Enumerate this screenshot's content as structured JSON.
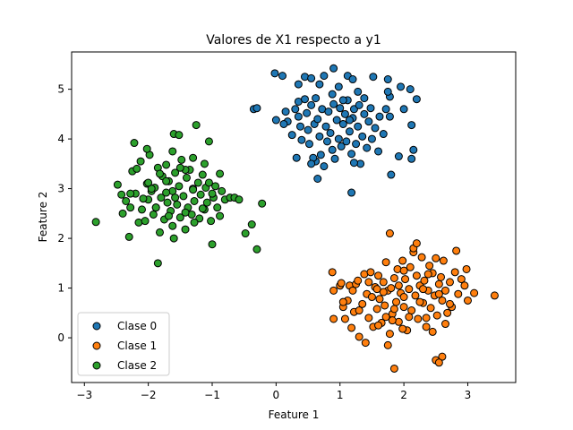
{
  "chart_data": {
    "type": "scatter",
    "title": "Valores de X1 respecto a y1",
    "xlabel": "Feature 1",
    "ylabel": "Feature 2",
    "xlim": [
      -3.2,
      3.75
    ],
    "ylim": [
      -0.9,
      5.75
    ],
    "xticks": [
      -3,
      -2,
      -1,
      0,
      1,
      2,
      3
    ],
    "yticks": [
      0,
      1,
      2,
      3,
      4,
      5
    ],
    "grid": false,
    "legend_position": "bottom-left",
    "marker": "circle",
    "marker_edge_color": "#000000",
    "series": [
      {
        "name": "Clase 0",
        "color": "#1f77b4",
        "points": [
          [
            -0.35,
            4.6
          ],
          [
            -0.3,
            4.62
          ],
          [
            -0.02,
            5.32
          ],
          [
            0.1,
            5.27
          ],
          [
            0.35,
            5.1
          ],
          [
            0.45,
            5.25
          ],
          [
            0.55,
            5.22
          ],
          [
            0.68,
            5.1
          ],
          [
            0.75,
            5.27
          ],
          [
            0.9,
            5.42
          ],
          [
            0.98,
            5.05
          ],
          [
            1.12,
            5.27
          ],
          [
            1.2,
            5.2
          ],
          [
            1.28,
            4.95
          ],
          [
            1.52,
            5.25
          ],
          [
            1.75,
            5.2
          ],
          [
            1.78,
            4.85
          ],
          [
            1.78,
            4.45
          ],
          [
            1.95,
            5.05
          ],
          [
            2.1,
            5
          ],
          [
            2.2,
            4.8
          ],
          [
            1.75,
            4.95
          ],
          [
            0.0,
            4.38
          ],
          [
            0.15,
            4.55
          ],
          [
            0.18,
            4.35
          ],
          [
            0.25,
            4.08
          ],
          [
            0.3,
            4.6
          ],
          [
            0.35,
            4.75
          ],
          [
            0.38,
            4.25
          ],
          [
            0.4,
            3.98
          ],
          [
            0.45,
            4.8
          ],
          [
            0.48,
            4.52
          ],
          [
            0.5,
            4.18
          ],
          [
            0.52,
            3.9
          ],
          [
            0.55,
            4.68
          ],
          [
            0.6,
            4.3
          ],
          [
            0.62,
            3.55
          ],
          [
            0.65,
            4.4
          ],
          [
            0.68,
            4.05
          ],
          [
            0.7,
            3.68
          ],
          [
            0.72,
            4.6
          ],
          [
            0.75,
            3.45
          ],
          [
            0.78,
            4.25
          ],
          [
            0.8,
            3.95
          ],
          [
            0.82,
            4.55
          ],
          [
            0.85,
            4.12
          ],
          [
            0.88,
            3.78
          ],
          [
            0.9,
            4.7
          ],
          [
            0.92,
            3.6
          ],
          [
            0.95,
            4.38
          ],
          [
            0.98,
            4.0
          ],
          [
            1.0,
            4.62
          ],
          [
            1.02,
            3.85
          ],
          [
            1.05,
            4.3
          ],
          [
            1.08,
            4.5
          ],
          [
            1.1,
            3.95
          ],
          [
            1.12,
            4.78
          ],
          [
            1.15,
            4.15
          ],
          [
            1.18,
            3.7
          ],
          [
            1.2,
            4.42
          ],
          [
            1.22,
            4.6
          ],
          [
            1.25,
            3.9
          ],
          [
            1.28,
            4.25
          ],
          [
            1.3,
            4.68
          ],
          [
            1.32,
            3.5
          ],
          [
            1.35,
            4.05
          ],
          [
            1.38,
            4.5
          ],
          [
            1.42,
            3.82
          ],
          [
            1.45,
            4.35
          ],
          [
            1.48,
            4.62
          ],
          [
            1.5,
            4.0
          ],
          [
            1.55,
            4.22
          ],
          [
            1.6,
            3.75
          ],
          [
            1.62,
            4.45
          ],
          [
            1.68,
            4.1
          ],
          [
            1.72,
            4.6
          ],
          [
            2.0,
            4.6
          ],
          [
            2.12,
            4.28
          ],
          [
            2.15,
            3.78
          ],
          [
            2.12,
            3.6
          ],
          [
            1.92,
            3.65
          ],
          [
            1.8,
            3.28
          ],
          [
            0.65,
            3.2
          ],
          [
            0.32,
            3.62
          ],
          [
            0.58,
            3.62
          ],
          [
            1.22,
            3.52
          ],
          [
            1.18,
            2.92
          ],
          [
            0.55,
            3.5
          ],
          [
            0.35,
            4.45
          ],
          [
            0.12,
            4.3
          ],
          [
            0.88,
            4.9
          ],
          [
            1.05,
            4.78
          ],
          [
            1.38,
            4.82
          ],
          [
            0.62,
            4.82
          ],
          [
            1.15,
            4.38
          ]
        ]
      },
      {
        "name": "Clase 1",
        "color": "#ff7f0e",
        "points": [
          [
            0.88,
            1.32
          ],
          [
            0.9,
            0.95
          ],
          [
            1.0,
            1.05
          ],
          [
            1.02,
            1.1
          ],
          [
            1.05,
            0.62
          ],
          [
            1.08,
            0.38
          ],
          [
            1.12,
            0.75
          ],
          [
            1.15,
            1.05
          ],
          [
            1.18,
            0.2
          ],
          [
            1.2,
            0.95
          ],
          [
            1.22,
            0.52
          ],
          [
            1.25,
            1.08
          ],
          [
            1.28,
            1.15
          ],
          [
            1.3,
            0.02
          ],
          [
            1.35,
            0.68
          ],
          [
            1.38,
            1.28
          ],
          [
            1.4,
            -0.1
          ],
          [
            1.42,
            0.88
          ],
          [
            1.45,
            0.4
          ],
          [
            1.48,
            1.32
          ],
          [
            1.5,
            0.82
          ],
          [
            1.52,
            0.22
          ],
          [
            1.55,
            1.02
          ],
          [
            1.58,
            0.58
          ],
          [
            1.6,
            1.25
          ],
          [
            1.62,
            0.78
          ],
          [
            1.65,
            0.3
          ],
          [
            1.68,
            1.12
          ],
          [
            1.7,
            0.65
          ],
          [
            1.72,
            1.52
          ],
          [
            1.75,
            0.95
          ],
          [
            1.78,
            0.08
          ],
          [
            1.8,
            1.0
          ],
          [
            1.82,
            0.48
          ],
          [
            1.85,
            1.2
          ],
          [
            1.88,
            0.72
          ],
          [
            1.9,
            1.38
          ],
          [
            1.92,
            0.32
          ],
          [
            1.95,
            0.9
          ],
          [
            1.98,
            1.55
          ],
          [
            2.0,
            0.62
          ],
          [
            2.02,
            1.18
          ],
          [
            2.05,
            0.15
          ],
          [
            2.08,
            0.98
          ],
          [
            2.1,
            1.42
          ],
          [
            2.12,
            0.55
          ],
          [
            2.15,
            1.72
          ],
          [
            2.18,
            0.85
          ],
          [
            2.2,
            1.25
          ],
          [
            2.22,
            0.38
          ],
          [
            2.25,
            1.05
          ],
          [
            2.28,
            1.62
          ],
          [
            2.3,
            0.7
          ],
          [
            2.32,
            1.15
          ],
          [
            2.35,
            0.22
          ],
          [
            2.38,
            0.95
          ],
          [
            2.4,
            1.45
          ],
          [
            2.42,
            0.6
          ],
          [
            2.45,
            1.3
          ],
          [
            2.48,
            0.85
          ],
          [
            2.5,
            1.6
          ],
          [
            2.52,
            0.45
          ],
          [
            2.55,
            1.08
          ],
          [
            2.58,
            1.22
          ],
          [
            2.6,
            0.75
          ],
          [
            2.62,
            1.55
          ],
          [
            2.65,
            0.95
          ],
          [
            2.68,
            0.5
          ],
          [
            2.72,
            1.12
          ],
          [
            2.75,
            0.62
          ],
          [
            2.8,
            1.32
          ],
          [
            2.82,
            1.75
          ],
          [
            2.85,
            0.88
          ],
          [
            2.9,
            1.18
          ],
          [
            2.95,
            1.05
          ],
          [
            2.98,
            1.38
          ],
          [
            2.5,
            -0.45
          ],
          [
            2.6,
            -0.38
          ],
          [
            2.55,
            -0.5
          ],
          [
            1.85,
            -0.62
          ],
          [
            1.75,
            -0.15
          ],
          [
            1.78,
            2.1
          ],
          [
            2.15,
            1.8
          ],
          [
            2.2,
            1.9
          ],
          [
            3.1,
            0.9
          ],
          [
            3.42,
            0.85
          ],
          [
            3.0,
            0.75
          ],
          [
            0.9,
            0.38
          ],
          [
            1.05,
            0.72
          ],
          [
            1.3,
            0.55
          ],
          [
            1.6,
            0.25
          ],
          [
            2.35,
            0.4
          ],
          [
            2.45,
            0.12
          ],
          [
            2.65,
            0.28
          ],
          [
            2.0,
            0.82
          ],
          [
            1.92,
            1.05
          ],
          [
            1.68,
            0.92
          ],
          [
            2.3,
            0.98
          ],
          [
            2.38,
            1.28
          ],
          [
            2.0,
            1.35
          ],
          [
            1.58,
            0.98
          ],
          [
            1.45,
            1.12
          ],
          [
            1.85,
            0.58
          ],
          [
            2.08,
            0.42
          ],
          [
            2.25,
            0.72
          ],
          [
            2.55,
            0.88
          ],
          [
            2.72,
            0.68
          ],
          [
            1.82,
            0.35
          ],
          [
            1.72,
            0.42
          ],
          [
            1.98,
            0.18
          ]
        ]
      },
      {
        "name": "Clase 2",
        "color": "#2ca02c",
        "points": [
          [
            -2.82,
            2.33
          ],
          [
            -2.48,
            3.08
          ],
          [
            -2.42,
            2.88
          ],
          [
            -2.4,
            2.5
          ],
          [
            -2.35,
            2.75
          ],
          [
            -2.3,
            2.03
          ],
          [
            -2.28,
            2.62
          ],
          [
            -2.25,
            3.35
          ],
          [
            -2.22,
            3.92
          ],
          [
            -2.2,
            2.9
          ],
          [
            -2.15,
            2.32
          ],
          [
            -2.12,
            3.55
          ],
          [
            -2.1,
            2.58
          ],
          [
            -2.05,
            2.35
          ],
          [
            -2.02,
            3.1
          ],
          [
            -2.0,
            2.78
          ],
          [
            -1.98,
            3.68
          ],
          [
            -1.95,
            2.95
          ],
          [
            -1.92,
            2.48
          ],
          [
            -1.9,
            3.02
          ],
          [
            -1.88,
            2.62
          ],
          [
            -1.85,
            3.42
          ],
          [
            -1.82,
            2.12
          ],
          [
            -1.8,
            2.82
          ],
          [
            -1.78,
            3.25
          ],
          [
            -1.75,
            2.38
          ],
          [
            -1.72,
            3.48
          ],
          [
            -1.7,
            2.72
          ],
          [
            -1.68,
            3.15
          ],
          [
            -1.65,
            2.55
          ],
          [
            -1.62,
            2.95
          ],
          [
            -1.6,
            2.0
          ],
          [
            -1.58,
            3.32
          ],
          [
            -1.55,
            2.68
          ],
          [
            -1.52,
            3.05
          ],
          [
            -1.5,
            2.42
          ],
          [
            -1.48,
            3.58
          ],
          [
            -1.45,
            2.85
          ],
          [
            -1.42,
            2.18
          ],
          [
            -1.4,
            3.22
          ],
          [
            -1.38,
            2.62
          ],
          [
            -1.35,
            3.38
          ],
          [
            -1.32,
            2.48
          ],
          [
            -1.3,
            3.0
          ],
          [
            -1.28,
            2.75
          ],
          [
            -1.25,
            4.28
          ],
          [
            -1.22,
            3.12
          ],
          [
            -1.2,
            2.4
          ],
          [
            -1.18,
            2.88
          ],
          [
            -1.15,
            3.28
          ],
          [
            -1.12,
            2.58
          ],
          [
            -1.1,
            3.02
          ],
          [
            -1.08,
            2.72
          ],
          [
            -1.05,
            3.12
          ],
          [
            -1.02,
            2.35
          ],
          [
            -1.0,
            1.88
          ],
          [
            -0.98,
            2.82
          ],
          [
            -0.95,
            3.05
          ],
          [
            -0.92,
            2.62
          ],
          [
            -0.88,
            3.3
          ],
          [
            -0.85,
            2.95
          ],
          [
            -0.8,
            2.78
          ],
          [
            -0.72,
            2.82
          ],
          [
            -0.65,
            2.82
          ],
          [
            -0.58,
            2.78
          ],
          [
            -0.48,
            2.1
          ],
          [
            -0.38,
            2.28
          ],
          [
            -0.3,
            1.78
          ],
          [
            -0.22,
            2.7
          ],
          [
            -1.85,
            1.5
          ],
          [
            -1.6,
            4.1
          ],
          [
            -1.52,
            4.08
          ],
          [
            -1.3,
            3.62
          ],
          [
            -1.05,
            3.95
          ],
          [
            -2.02,
            3.8
          ],
          [
            -1.82,
            3.3
          ],
          [
            -1.62,
            3.75
          ],
          [
            -2.18,
            3.4
          ],
          [
            -2.28,
            2.9
          ],
          [
            -2.08,
            2.8
          ],
          [
            -1.95,
            3.0
          ],
          [
            -1.72,
            2.92
          ],
          [
            -1.58,
            2.82
          ],
          [
            -1.42,
            2.52
          ],
          [
            -1.28,
            2.32
          ],
          [
            -1.15,
            2.6
          ],
          [
            -1.88,
            2.62
          ],
          [
            -1.68,
            2.45
          ],
          [
            -1.42,
            3.38
          ],
          [
            -1.72,
            3.15
          ],
          [
            -2.0,
            3.12
          ],
          [
            -1.12,
            3.5
          ],
          [
            -0.88,
            2.45
          ],
          [
            -1.0,
            2.9
          ],
          [
            -1.5,
            3.42
          ],
          [
            -1.3,
            2.98
          ],
          [
            -1.62,
            2.25
          ]
        ]
      }
    ]
  }
}
